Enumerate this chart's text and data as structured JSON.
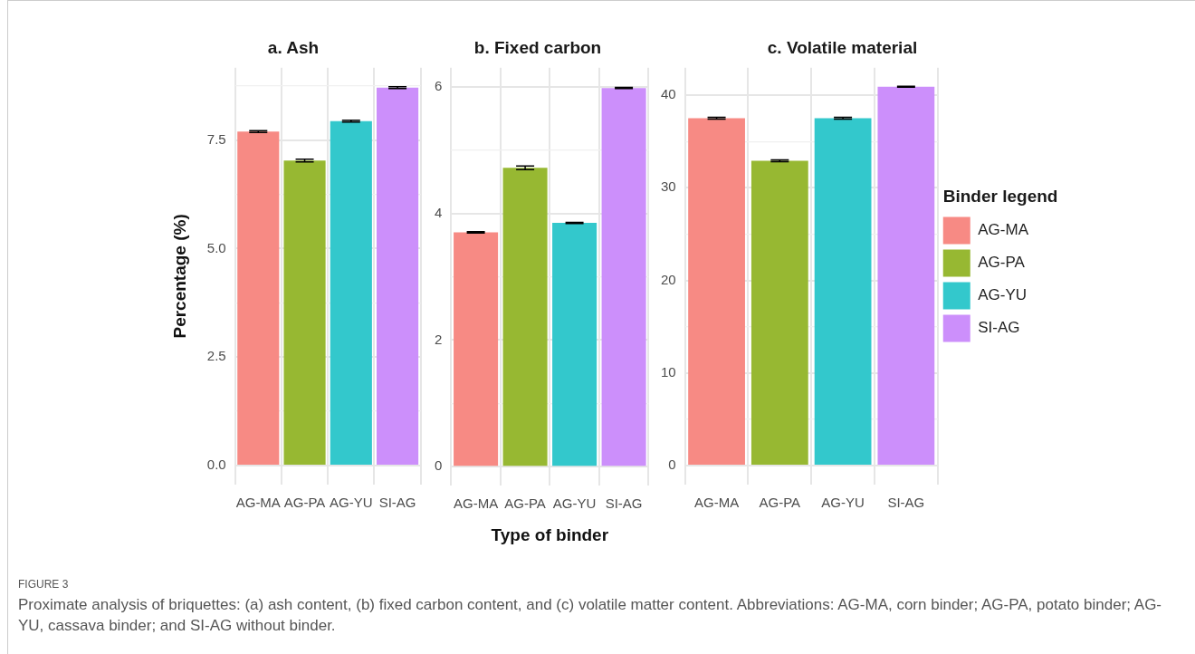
{
  "chart_data": [
    {
      "type": "bar",
      "title": "a. Ash",
      "ylabel": "Percentage (%)",
      "categories": [
        "AG-MA",
        "AG-PA",
        "AG-YU",
        "SI-AG"
      ],
      "series": [
        {
          "color": "#f78a84",
          "values": [
            7.7,
            null,
            null,
            null
          ],
          "errors": [
            0.02,
            null,
            null,
            null
          ]
        },
        {
          "color": "#97b832",
          "values": [
            null,
            7.03,
            null,
            null
          ],
          "errors": [
            null,
            0.03,
            null,
            null
          ]
        },
        {
          "color": "#33c8cc",
          "values": [
            null,
            null,
            7.94,
            null
          ],
          "errors": [
            null,
            null,
            0.02,
            null
          ]
        },
        {
          "color": "#cc8ffb",
          "values": [
            null,
            null,
            null,
            8.71
          ],
          "errors": [
            null,
            null,
            null,
            0.02
          ]
        }
      ],
      "ylim": [
        -0.44,
        9.17
      ],
      "yticks": [
        {
          "value": 0,
          "label": "0.0"
        },
        {
          "value": 1.25,
          "label": null
        },
        2.5,
        {
          "value": 3.75,
          "label": null
        },
        {
          "value": 5,
          "label": "5.0"
        },
        {
          "value": 6.25,
          "label": null
        },
        7.5,
        {
          "value": 8.75,
          "label": null
        }
      ],
      "grid": true,
      "annotations": [
        "FIGURE 3",
        "Proximate analysis of briquettes: (a) ash content, (b) fixed carbon content, and (c) volatile matter content. Abbreviations: AG-MA, corn binder; AG-PA, potato binder; AG-YU, cassava binder; and SI-AG without binder."
      ]
    },
    {
      "type": "bar",
      "title": "b. Fixed carbon",
      "xlabel": "Type of binder",
      "categories": [
        "AG-MA",
        "AG-PA",
        "AG-YU",
        "SI-AG"
      ],
      "series": [
        {
          "color": "#f78a84",
          "values": [
            3.7,
            null,
            null,
            null
          ],
          "errors": [
            0.01,
            null,
            null,
            null
          ]
        },
        {
          "color": "#97b832",
          "values": [
            null,
            4.72,
            null,
            null
          ],
          "errors": [
            null,
            0.03,
            null,
            null
          ]
        },
        {
          "color": "#33c8cc",
          "values": [
            null,
            null,
            3.85,
            null
          ],
          "errors": [
            null,
            null,
            0.01,
            null
          ]
        },
        {
          "color": "#cc8ffb",
          "values": [
            null,
            null,
            null,
            5.98
          ],
          "errors": [
            null,
            null,
            null,
            0.01
          ]
        }
      ],
      "ylim": [
        -0.3,
        6.3
      ],
      "yticks": [
        0,
        {
          "value": 1,
          "label": null
        },
        2,
        {
          "value": 3,
          "label": null
        },
        4,
        {
          "value": 5,
          "label": null
        },
        6
      ],
      "grid": true
    },
    {
      "type": "bar",
      "title": "c. Volatile material",
      "categories": [
        "AG-MA",
        "AG-PA",
        "AG-YU",
        "SI-AG"
      ],
      "series": [
        {
          "name": "AG-MA",
          "color": "#f78a84",
          "values": [
            37.5,
            null,
            null,
            null
          ],
          "errors": [
            0.1,
            null,
            null,
            null
          ]
        },
        {
          "name": "AG-PA",
          "color": "#97b832",
          "values": [
            null,
            32.9,
            null,
            null
          ],
          "errors": [
            null,
            0.1,
            null,
            null
          ]
        },
        {
          "name": "AG-YU",
          "color": "#33c8cc",
          "values": [
            null,
            null,
            37.5,
            null
          ],
          "errors": [
            null,
            null,
            0.1,
            null
          ]
        },
        {
          "name": "SI-AG",
          "color": "#cc8ffb",
          "values": [
            null,
            null,
            null,
            40.9
          ],
          "errors": [
            null,
            null,
            null,
            0.05
          ]
        }
      ],
      "ylim": [
        -2.05,
        42.95
      ],
      "yticks": [
        0,
        {
          "value": 5,
          "label": null
        },
        10,
        {
          "value": 15,
          "label": null
        },
        20,
        {
          "value": 25,
          "label": null
        },
        30,
        {
          "value": 35,
          "label": null
        },
        40
      ],
      "grid": true,
      "legend": "right",
      "legend_title": "Binder legend"
    }
  ]
}
